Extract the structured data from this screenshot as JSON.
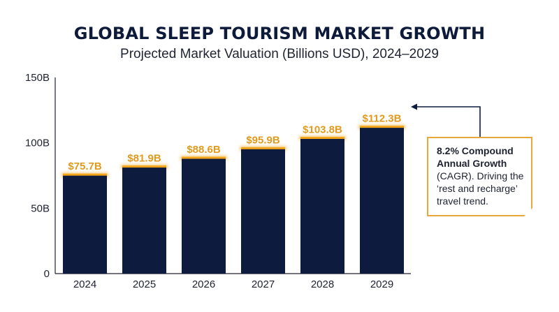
{
  "header": {
    "title": "GLOBAL SLEEP TOURISM MARKET GROWTH",
    "subtitle": "Projected Market Valuation (Billions USD), 2024–2029"
  },
  "colors": {
    "bar": "#0d1b3e",
    "accent": "#f2a51a",
    "text": "#1e2230"
  },
  "callout": {
    "bold_text": "8.2% Compound Annual Growth",
    "body_text": "(CAGR). Driving the ‘rest and recharge’ travel trend."
  },
  "chart_data": {
    "type": "bar",
    "title": "GLOBAL SLEEP TOURISM MARKET GROWTH",
    "subtitle": "Projected Market Valuation (Billions USD), 2024–2029",
    "xlabel": "",
    "ylabel": "",
    "categories": [
      "2024",
      "2025",
      "2026",
      "2027",
      "2028",
      "2029"
    ],
    "values": [
      75.7,
      81.9,
      88.6,
      95.9,
      103.8,
      112.3
    ],
    "data_labels": [
      "$75.7B",
      "$81.9B",
      "$88.6B",
      "$95.9B",
      "$103.8B",
      "$112.3B"
    ],
    "ylim": [
      0,
      150
    ],
    "yticks": [
      0,
      50,
      100,
      150
    ],
    "ytick_labels": [
      "0",
      "50B",
      "100B",
      "150B"
    ],
    "grid": false,
    "legend": "none"
  }
}
